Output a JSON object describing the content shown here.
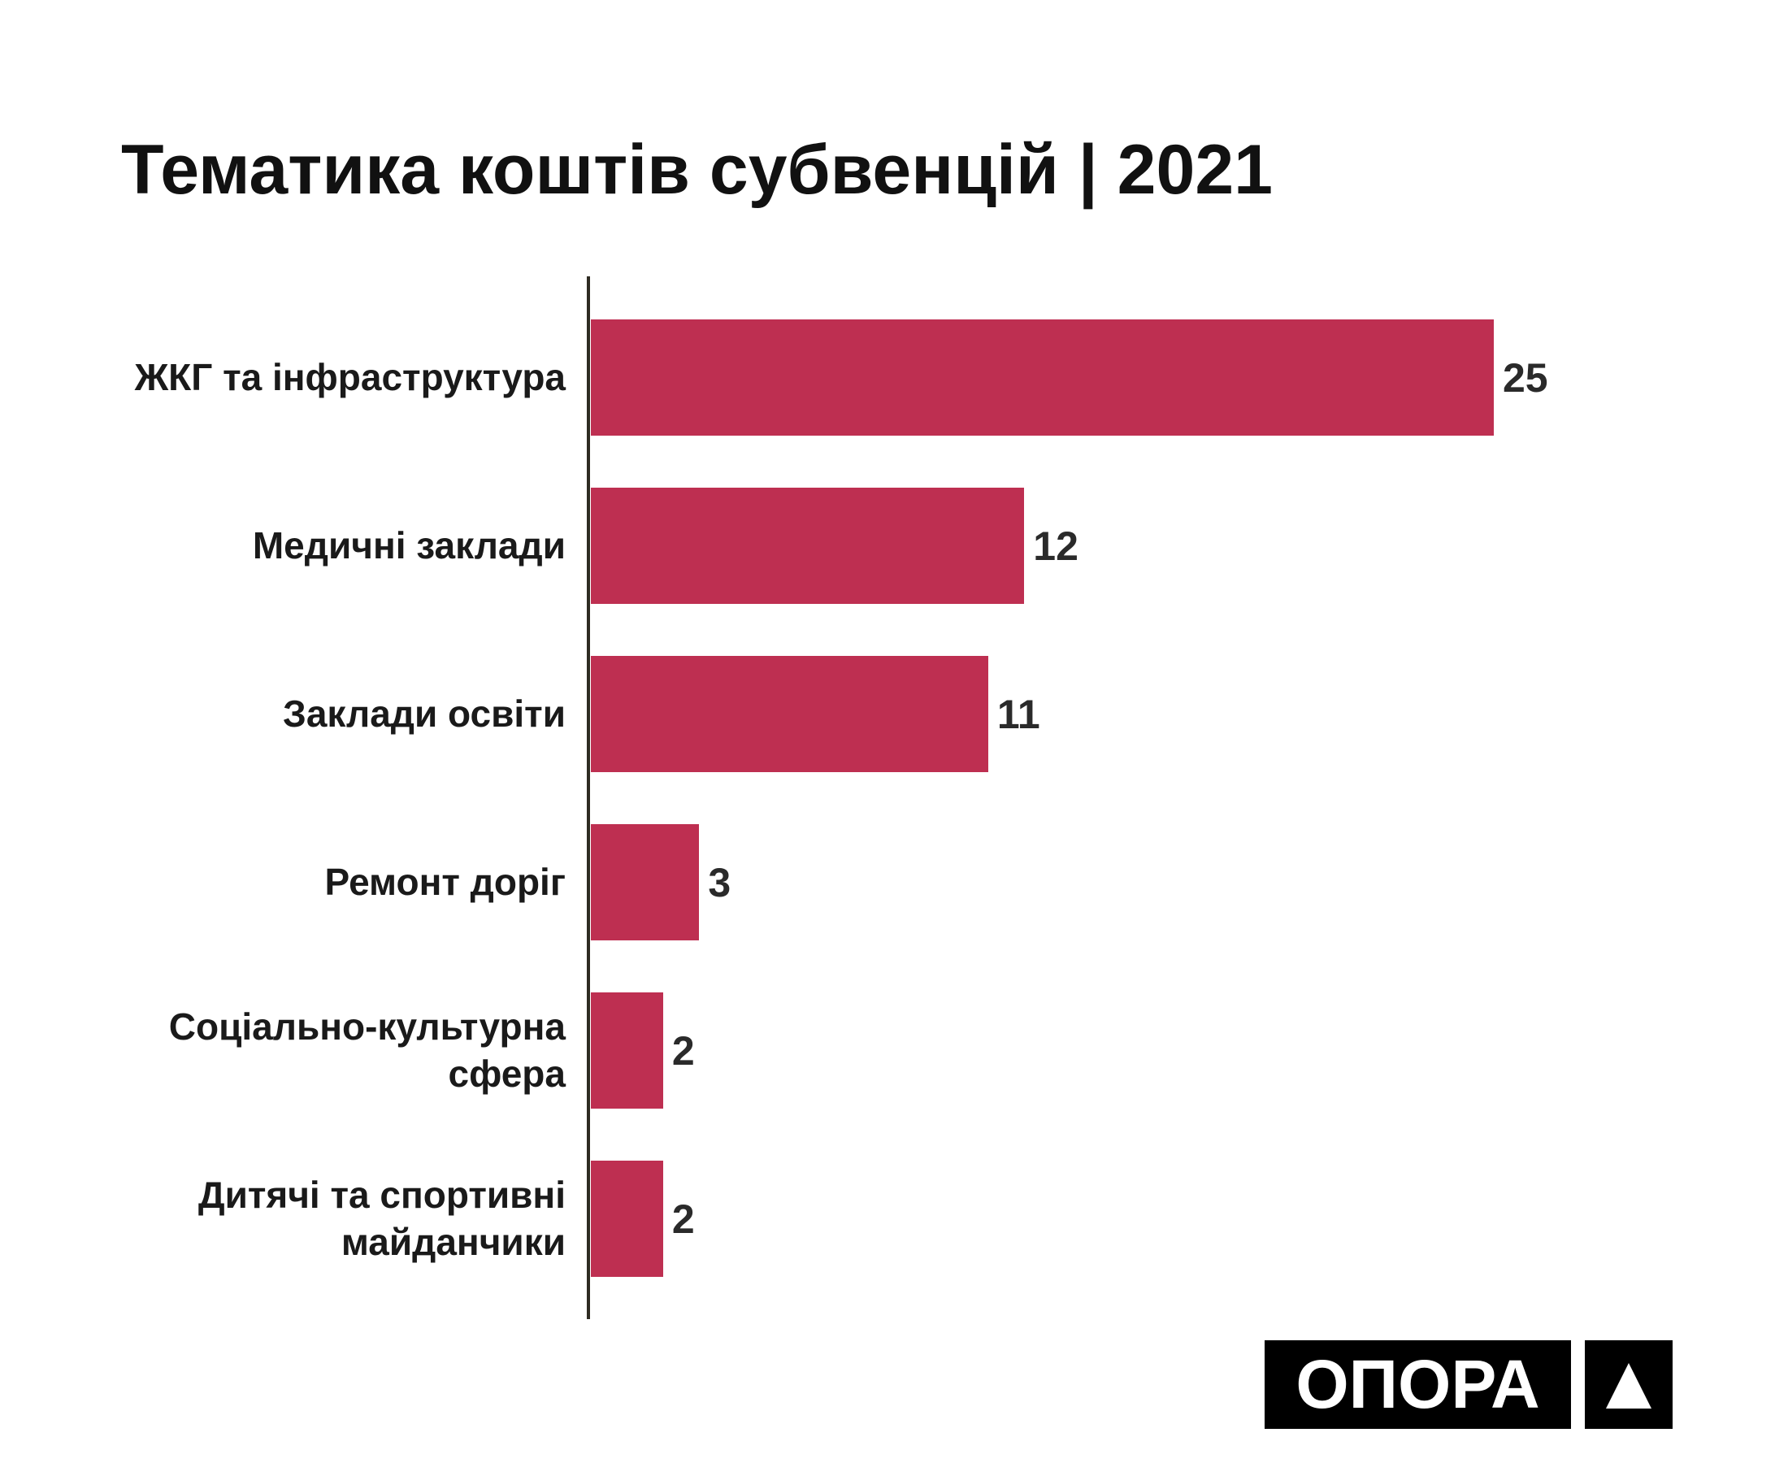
{
  "chart_data": {
    "type": "bar",
    "orientation": "horizontal",
    "title": "Тематика коштів субвенцій | 2021",
    "categories": [
      "ЖКГ та інфраструктура",
      "Медичні заклади",
      "Заклади освіти",
      "Ремонт доріг",
      "Соціально-культурна сфера",
      "Дитячі та спортивні майданчики"
    ],
    "values": [
      25,
      12,
      11,
      3,
      2,
      2
    ],
    "color": "#be2f51"
  },
  "logo": "ОПОРА"
}
